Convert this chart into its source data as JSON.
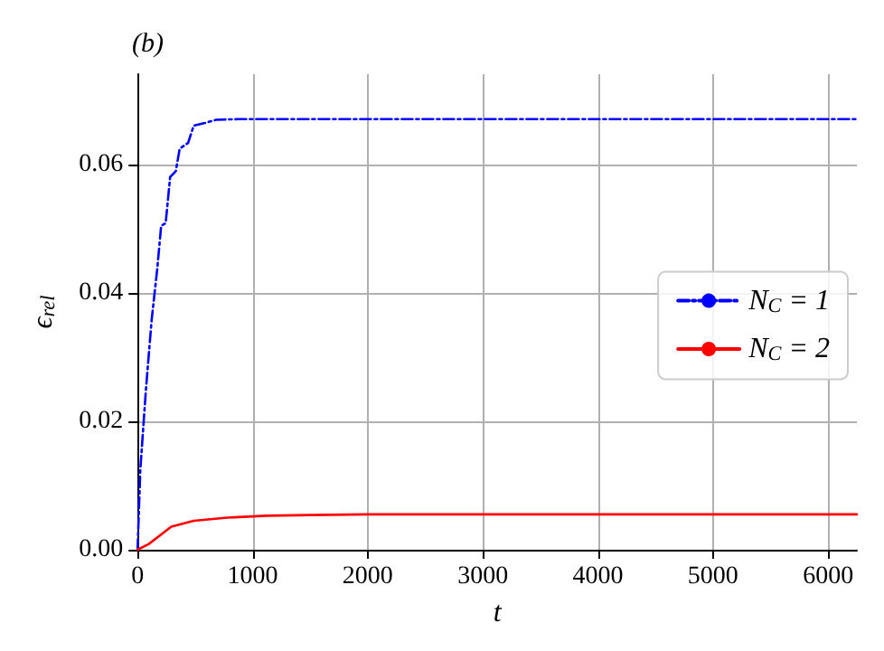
{
  "chart_data": {
    "type": "line",
    "title": "(b)",
    "xlabel": "t",
    "ylabel": "ϵ$_{rel}$",
    "xlim": [
      0,
      6250
    ],
    "xticks": [
      0,
      1000,
      2000,
      3000,
      4000,
      5000,
      6000
    ],
    "ylim": [
      0,
      0.074
    ],
    "yticks": [
      {
        "value": 0,
        "label": "0.00"
      },
      {
        "value": 0.02,
        "label": "0.02"
      },
      {
        "value": 0.04,
        "label": "0.04"
      },
      {
        "value": 0.06,
        "label": "0.06"
      }
    ],
    "grid": true,
    "legend": "right",
    "marker": "none",
    "series": [
      {
        "name": "N$_{C}$ = 1",
        "color": "#0000ff",
        "line_style": "dashed",
        "x": [
          0,
          24,
          73,
          122,
          171,
          205,
          244,
          283,
          332,
          366,
          439,
          488,
          585,
          683,
          878,
          1200,
          2000,
          3000,
          4000,
          5000,
          6250
        ],
        "values": [
          0,
          0.0125,
          0.025,
          0.0357,
          0.0437,
          0.0504,
          0.0508,
          0.058,
          0.0589,
          0.0624,
          0.0633,
          0.066,
          0.0664,
          0.0669,
          0.067,
          0.067,
          0.067,
          0.067,
          0.067,
          0.067,
          0.067
        ]
      },
      {
        "name": "N$_{C}$ = 2",
        "color": "#ff0000",
        "line_style": "solid",
        "x": [
          0,
          98,
          293,
          488,
          780,
          1122,
          1500,
          2000,
          3000,
          4000,
          5000,
          6250
        ],
        "values": [
          0,
          0.0009,
          0.0036,
          0.0045,
          0.005,
          0.0053,
          0.0054,
          0.0055,
          0.0055,
          0.0055,
          0.0055,
          0.0055
        ]
      }
    ]
  }
}
